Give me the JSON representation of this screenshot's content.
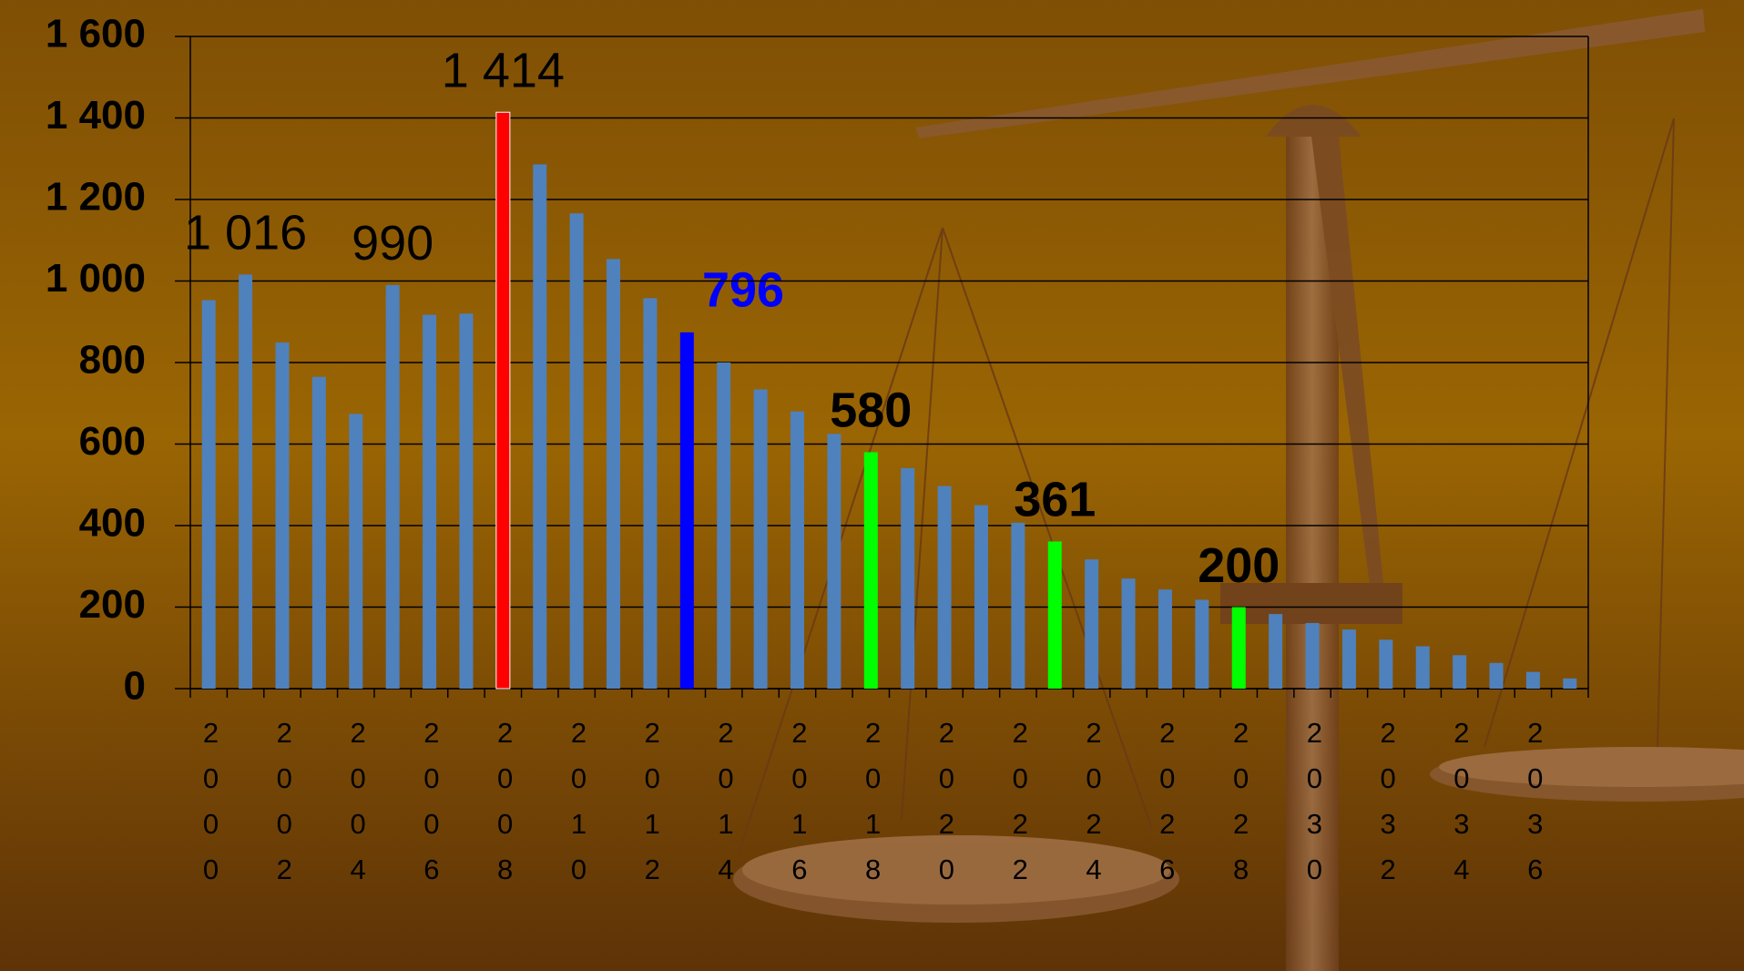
{
  "chart_data": {
    "type": "bar",
    "categories": [
      "2000",
      null,
      "2002",
      null,
      "2004",
      null,
      "2006",
      null,
      "2008",
      null,
      "2010",
      null,
      "2012",
      null,
      "2014",
      null,
      "2016",
      null,
      "2018",
      null,
      "2020",
      null,
      "2022",
      null,
      "2024",
      null,
      "2026",
      null,
      "2028",
      null,
      "2030",
      null,
      "2032",
      null,
      "2034",
      null,
      "2036",
      null
    ],
    "values": [
      953,
      1016,
      849,
      765,
      674,
      990,
      917,
      920,
      1414,
      1286,
      1166,
      1054,
      958,
      874,
      800,
      734,
      680,
      625,
      580,
      541,
      497,
      450,
      407,
      361,
      317,
      270,
      243,
      218,
      200,
      183,
      161,
      145,
      120,
      104,
      82,
      63,
      41,
      25
    ],
    "value_labels": [
      null,
      "1 016",
      null,
      null,
      null,
      "990",
      null,
      null,
      "1 414",
      null,
      null,
      null,
      null,
      null,
      null,
      null,
      null,
      null,
      "580",
      null,
      null,
      null,
      null,
      "361",
      null,
      null,
      null,
      null,
      "200",
      null,
      null,
      null,
      null,
      null,
      null,
      null,
      null,
      null
    ],
    "colors": [
      "#4f81bd",
      "#4f81bd",
      "#4f81bd",
      "#4f81bd",
      "#4f81bd",
      "#4f81bd",
      "#4f81bd",
      "#4f81bd",
      "#ff0000",
      "#4f81bd",
      "#4f81bd",
      "#4f81bd",
      "#4f81bd",
      "#0000ff",
      "#4f81bd",
      "#4f81bd",
      "#4f81bd",
      "#4f81bd",
      "#00ff00",
      "#4f81bd",
      "#4f81bd",
      "#4f81bd",
      "#4f81bd",
      "#00ff00",
      "#4f81bd",
      "#4f81bd",
      "#4f81bd",
      "#4f81bd",
      "#00ff00",
      "#4f81bd",
      "#4f81bd",
      "#4f81bd",
      "#4f81bd",
      "#4f81bd",
      "#4f81bd",
      "#4f81bd",
      "#4f81bd",
      "#4f81bd"
    ],
    "annotations": [
      "796"
    ],
    "ylim": [
      0,
      1600
    ],
    "yticks": [
      0,
      200,
      400,
      600,
      800,
      {
        "value": 1000,
        "label": "1 000"
      },
      {
        "value": 1200,
        "label": "1 200"
      },
      {
        "value": 1400,
        "label": "1 400"
      },
      {
        "value": 1600,
        "label": "1 600"
      }
    ],
    "grid": true
  }
}
